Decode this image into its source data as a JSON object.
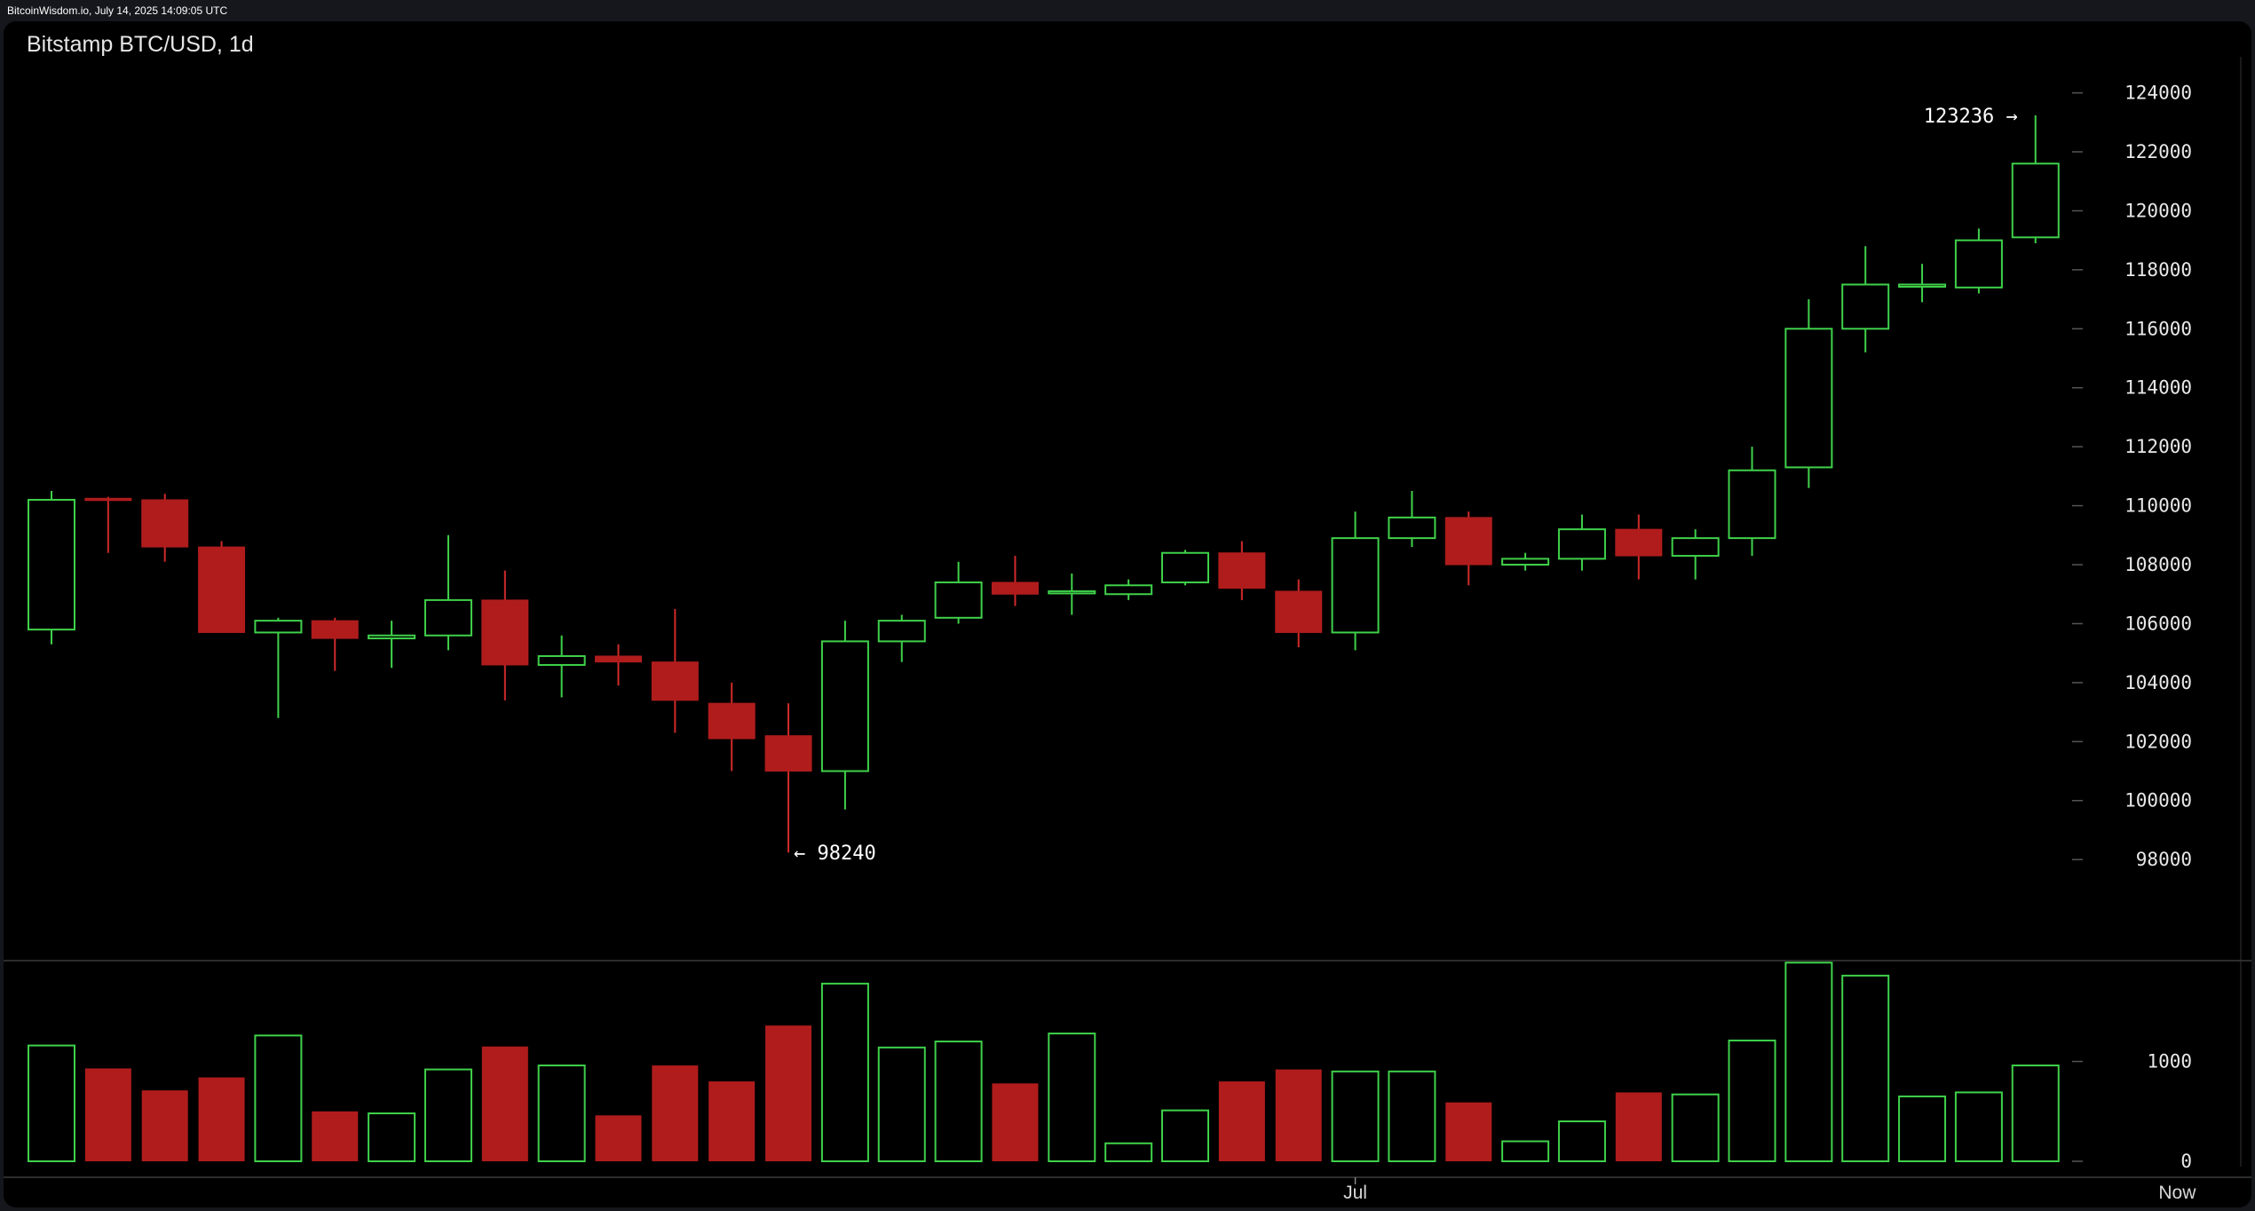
{
  "watermark": "BitcoinWisdom.io, July 14, 2025 14:09:05 UTC",
  "chart_data": {
    "type": "candlestick",
    "title": "Bitstamp BTC/USD, 1d",
    "price_axis": {
      "min": 96500,
      "max": 124800,
      "ticks": [
        98000,
        100000,
        102000,
        104000,
        106000,
        108000,
        110000,
        112000,
        114000,
        116000,
        118000,
        120000,
        122000,
        124000
      ]
    },
    "volume_axis": {
      "max": 1850,
      "ticks": [
        0,
        1000
      ]
    },
    "x_labels": [
      {
        "label": "Jul",
        "index": 23
      },
      {
        "label": "Now",
        "index": 37.5
      }
    ],
    "annotations": {
      "high": {
        "value": 123236,
        "text": "123236 →",
        "index": 35
      },
      "low": {
        "value": 98240,
        "text": "← 98240",
        "index": 13
      }
    },
    "colors": {
      "up": "#3fd14a",
      "down": "#b01c1c",
      "down_wick": "#d02a2a",
      "grid": "#555555"
    },
    "candles": [
      {
        "o": 105800,
        "h": 110500,
        "l": 105300,
        "c": 110200,
        "v": 1160
      },
      {
        "o": 110250,
        "h": 110300,
        "l": 108400,
        "c": 110200,
        "v": 930
      },
      {
        "o": 110200,
        "h": 110400,
        "l": 108100,
        "c": 108600,
        "v": 710
      },
      {
        "o": 108600,
        "h": 108800,
        "l": 105700,
        "c": 105700,
        "v": 840
      },
      {
        "o": 105700,
        "h": 106200,
        "l": 102800,
        "c": 106100,
        "v": 1260
      },
      {
        "o": 106100,
        "h": 106200,
        "l": 104400,
        "c": 105500,
        "v": 500
      },
      {
        "o": 105500,
        "h": 106100,
        "l": 104500,
        "c": 105600,
        "v": 480
      },
      {
        "o": 105600,
        "h": 109000,
        "l": 105100,
        "c": 106800,
        "v": 920
      },
      {
        "o": 106800,
        "h": 107800,
        "l": 103400,
        "c": 104600,
        "v": 1150
      },
      {
        "o": 104600,
        "h": 105600,
        "l": 103500,
        "c": 104900,
        "v": 960
      },
      {
        "o": 104900,
        "h": 105300,
        "l": 103900,
        "c": 104700,
        "v": 460
      },
      {
        "o": 104700,
        "h": 106500,
        "l": 102300,
        "c": 103400,
        "v": 960
      },
      {
        "o": 103300,
        "h": 104000,
        "l": 101000,
        "c": 102100,
        "v": 800
      },
      {
        "o": 102200,
        "h": 103300,
        "l": 98240,
        "c": 101000,
        "v": 1360
      },
      {
        "o": 101000,
        "h": 106100,
        "l": 99700,
        "c": 105400,
        "v": 1780
      },
      {
        "o": 105400,
        "h": 106300,
        "l": 104700,
        "c": 106100,
        "v": 1140
      },
      {
        "o": 106200,
        "h": 108100,
        "l": 106000,
        "c": 107400,
        "v": 1200
      },
      {
        "o": 107400,
        "h": 108300,
        "l": 106600,
        "c": 107000,
        "v": 780
      },
      {
        "o": 107100,
        "h": 107700,
        "l": 106300,
        "c": 107100,
        "v": 1280
      },
      {
        "o": 107000,
        "h": 107500,
        "l": 106800,
        "c": 107300,
        "v": 180
      },
      {
        "o": 107400,
        "h": 108500,
        "l": 107300,
        "c": 108400,
        "v": 510
      },
      {
        "o": 108400,
        "h": 108800,
        "l": 106800,
        "c": 107200,
        "v": 800
      },
      {
        "o": 107100,
        "h": 107500,
        "l": 105200,
        "c": 105700,
        "v": 920
      },
      {
        "o": 105700,
        "h": 109800,
        "l": 105100,
        "c": 108900,
        "v": 900
      },
      {
        "o": 108900,
        "h": 110500,
        "l": 108600,
        "c": 109600,
        "v": 900
      },
      {
        "o": 109600,
        "h": 109800,
        "l": 107300,
        "c": 108000,
        "v": 590
      },
      {
        "o": 108000,
        "h": 108400,
        "l": 107800,
        "c": 108200,
        "v": 200
      },
      {
        "o": 108200,
        "h": 109700,
        "l": 107800,
        "c": 109200,
        "v": 400
      },
      {
        "o": 109200,
        "h": 109700,
        "l": 107500,
        "c": 108300,
        "v": 690
      },
      {
        "o": 108300,
        "h": 109200,
        "l": 107500,
        "c": 108900,
        "v": 670
      },
      {
        "o": 108900,
        "h": 112000,
        "l": 108300,
        "c": 111200,
        "v": 1210
      },
      {
        "o": 111300,
        "h": 117000,
        "l": 110600,
        "c": 116000,
        "v": 1990
      },
      {
        "o": 116000,
        "h": 118800,
        "l": 115200,
        "c": 117500,
        "v": 1860
      },
      {
        "o": 117500,
        "h": 118200,
        "l": 116900,
        "c": 117500,
        "v": 650
      },
      {
        "o": 117400,
        "h": 119400,
        "l": 117200,
        "c": 119000,
        "v": 690
      },
      {
        "o": 119100,
        "h": 123236,
        "l": 118900,
        "c": 121600,
        "v": 960
      }
    ]
  }
}
